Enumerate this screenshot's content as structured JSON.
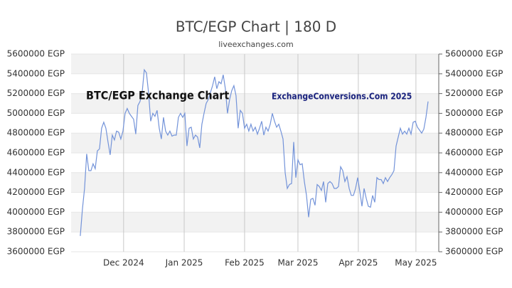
{
  "chart_data": {
    "type": "line",
    "title": "BTC/EGP Chart | 180 D",
    "subtitle": "liveexchanges.com",
    "annotations": [
      "BTC/EGP Exchange Chart",
      "ExchangeConversions.Com 2025"
    ],
    "series": [
      {
        "name": "BTC/EGP",
        "color": "#7393d9",
        "values": [
          3760000,
          4030000,
          4240000,
          4590000,
          4420000,
          4420000,
          4490000,
          4440000,
          4620000,
          4640000,
          4850000,
          4910000,
          4850000,
          4710000,
          4580000,
          4780000,
          4730000,
          4820000,
          4810000,
          4740000,
          4820000,
          5000000,
          5050000,
          5000000,
          4970000,
          4940000,
          4790000,
          5080000,
          5120000,
          5210000,
          5440000,
          5410000,
          5210000,
          4920000,
          5000000,
          4970000,
          5030000,
          4850000,
          4740000,
          4960000,
          4820000,
          4780000,
          4820000,
          4770000,
          4780000,
          4780000,
          4960000,
          5000000,
          4960000,
          5000000,
          4670000,
          4850000,
          4860000,
          4740000,
          4780000,
          4760000,
          4650000,
          4890000,
          5000000,
          5100000,
          5140000,
          5210000,
          5280000,
          5370000,
          5250000,
          5320000,
          5300000,
          5390000,
          5250000,
          5000000,
          5140000,
          5230000,
          5280000,
          5180000,
          4850000,
          5030000,
          5000000,
          4850000,
          4890000,
          4820000,
          4890000,
          4820000,
          4860000,
          4790000,
          4850000,
          4920000,
          4780000,
          4860000,
          4820000,
          4890000,
          5000000,
          4920000,
          4860000,
          4890000,
          4820000,
          4740000,
          4400000,
          4240000,
          4280000,
          4290000,
          4710000,
          4350000,
          4530000,
          4480000,
          4490000,
          4310000,
          4170000,
          3950000,
          4130000,
          4140000,
          4070000,
          4280000,
          4260000,
          4220000,
          4310000,
          4100000,
          4290000,
          4310000,
          4290000,
          4240000,
          4240000,
          4260000,
          4460000,
          4420000,
          4310000,
          4360000,
          4240000,
          4170000,
          4170000,
          4240000,
          4350000,
          4210000,
          4060000,
          4240000,
          4140000,
          4060000,
          4050000,
          4170000,
          4100000,
          4350000,
          4330000,
          4330000,
          4290000,
          4350000,
          4310000,
          4350000,
          4380000,
          4420000,
          4670000,
          4760000,
          4850000,
          4790000,
          4820000,
          4790000,
          4850000,
          4790000,
          4910000,
          4920000,
          4860000,
          4830000,
          4800000,
          4840000,
          4960000,
          5120000
        ]
      }
    ],
    "xlim": [
      -4.3,
      168
    ],
    "xticks": [
      {
        "value": 20.3,
        "label": "Dec 2024"
      },
      {
        "value": 48.7,
        "label": "Jan 2025"
      },
      {
        "value": 77,
        "label": "Feb 2025"
      },
      {
        "value": 102,
        "label": "Mar 2025"
      },
      {
        "value": 130.3,
        "label": "Apr 2025"
      },
      {
        "value": 157.3,
        "label": "May 2025"
      }
    ],
    "ylim": [
      3600000,
      5600000
    ],
    "yticks": [
      {
        "value": 3600000,
        "label": "3600000 EGP"
      },
      {
        "value": 3800000,
        "label": "3800000 EGP"
      },
      {
        "value": 4000000,
        "label": "4000000 EGP"
      },
      {
        "value": 4200000,
        "label": "4200000 EGP"
      },
      {
        "value": 4400000,
        "label": "4400000 EGP"
      },
      {
        "value": 4600000,
        "label": "4600000 EGP"
      },
      {
        "value": 4800000,
        "label": "4800000 EGP"
      },
      {
        "value": 5000000,
        "label": "5000000 EGP"
      },
      {
        "value": 5200000,
        "label": "5200000 EGP"
      },
      {
        "value": 5400000,
        "label": "5400000 EGP"
      },
      {
        "value": 5600000,
        "label": "5600000 EGP"
      }
    ],
    "grid": true
  }
}
